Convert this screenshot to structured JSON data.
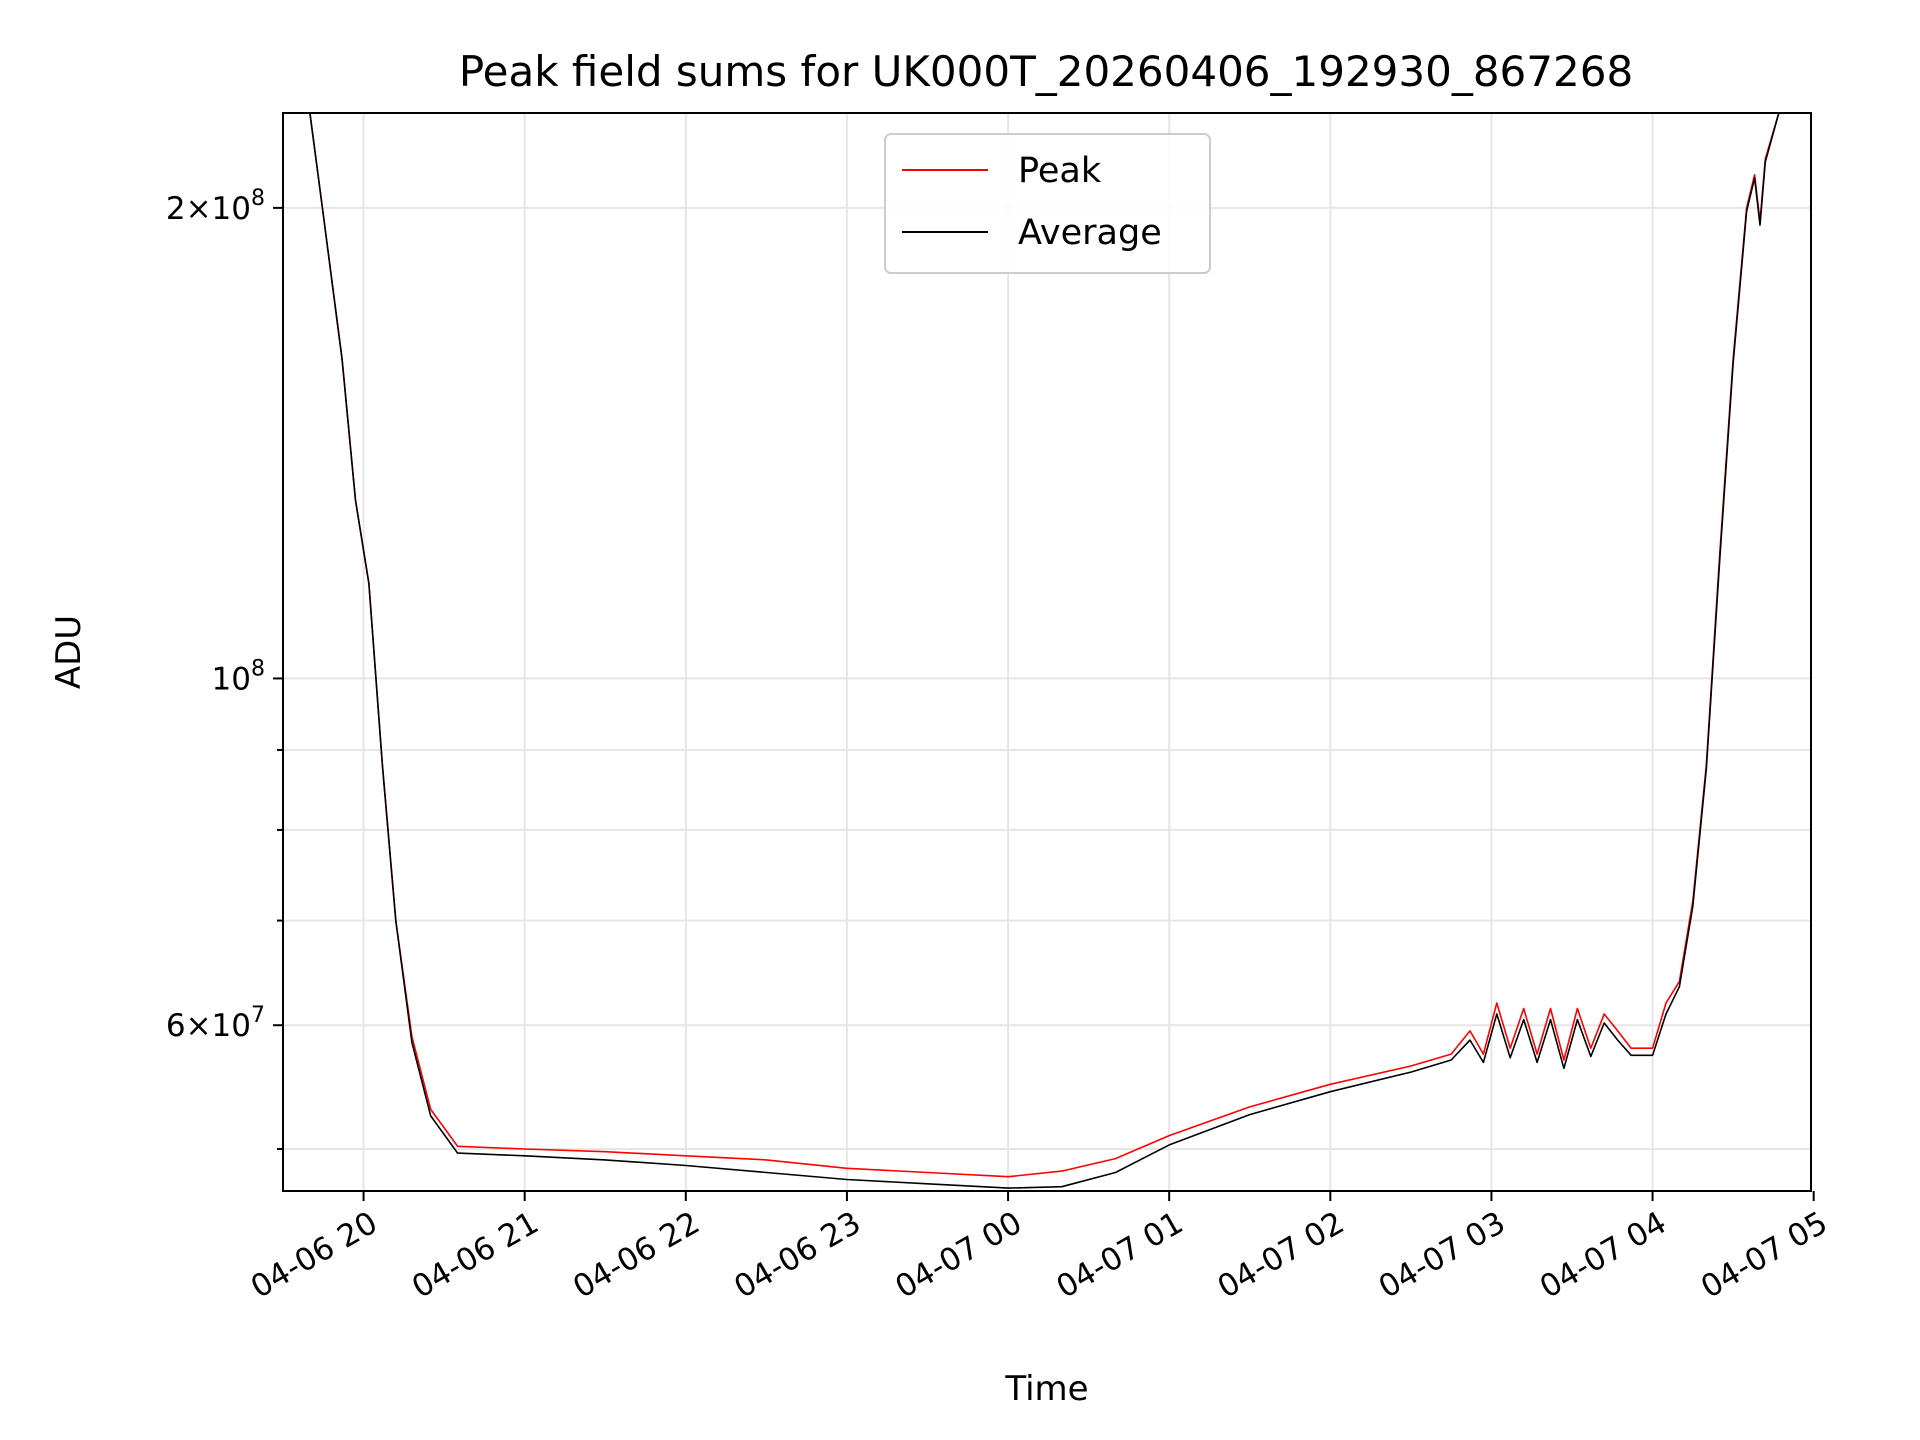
{
  "chart_data": {
    "type": "line",
    "title": "Peak field sums for UK000T_20260406_192930_867268",
    "xlabel": "Time",
    "ylabel": "ADU",
    "y_scale": "log",
    "grid": true,
    "legend_placement": "top-center",
    "xlim": [
      "2026-04-06 19:30",
      "2026-04-07 04:59"
    ],
    "ylim": [
      47000000,
      230000000
    ],
    "x_ticks": [
      {
        "value": "2026-04-06 20:00",
        "label": "04-06 20"
      },
      {
        "value": "2026-04-06 21:00",
        "label": "04-06 21"
      },
      {
        "value": "2026-04-06 22:00",
        "label": "04-06 22"
      },
      {
        "value": "2026-04-06 23:00",
        "label": "04-06 23"
      },
      {
        "value": "2026-04-07 00:00",
        "label": "04-07 00"
      },
      {
        "value": "2026-04-07 01:00",
        "label": "04-07 01"
      },
      {
        "value": "2026-04-07 02:00",
        "label": "04-07 02"
      },
      {
        "value": "2026-04-07 03:00",
        "label": "04-07 03"
      },
      {
        "value": "2026-04-07 04:00",
        "label": "04-07 04"
      },
      {
        "value": "2026-04-07 05:00",
        "label": "04-07 05"
      }
    ],
    "y_ticks_major": [
      {
        "value": 60000000,
        "label_mantissa": "6",
        "label_exponent": "7"
      },
      {
        "value": 100000000,
        "label_mantissa": "",
        "label_exponent": "8"
      },
      {
        "value": 200000000,
        "label_mantissa": "2",
        "label_exponent": "8"
      }
    ],
    "y_ticks_minor": [
      50000000,
      70000000,
      80000000,
      90000000
    ],
    "series": [
      {
        "name": "Peak",
        "color": "#ff0000",
        "x": [
          "2026-04-06 19:30",
          "2026-04-06 19:40",
          "2026-04-06 19:45",
          "2026-04-06 19:52",
          "2026-04-06 19:57",
          "2026-04-06 20:02",
          "2026-04-06 20:07",
          "2026-04-06 20:12",
          "2026-04-06 20:18",
          "2026-04-06 20:25",
          "2026-04-06 20:35",
          "2026-04-06 21:00",
          "2026-04-06 21:30",
          "2026-04-06 22:00",
          "2026-04-06 22:30",
          "2026-04-06 23:00",
          "2026-04-06 23:30",
          "2026-04-07 00:00",
          "2026-04-07 00:20",
          "2026-04-07 00:40",
          "2026-04-07 01:00",
          "2026-04-07 01:30",
          "2026-04-07 02:00",
          "2026-04-07 02:30",
          "2026-04-07 02:45",
          "2026-04-07 02:52",
          "2026-04-07 02:57",
          "2026-04-07 03:02",
          "2026-04-07 03:07",
          "2026-04-07 03:12",
          "2026-04-07 03:17",
          "2026-04-07 03:22",
          "2026-04-07 03:27",
          "2026-04-07 03:32",
          "2026-04-07 03:37",
          "2026-04-07 03:42",
          "2026-04-07 03:47",
          "2026-04-07 03:52",
          "2026-04-07 04:00",
          "2026-04-07 04:05",
          "2026-04-07 04:10",
          "2026-04-07 04:15",
          "2026-04-07 04:20",
          "2026-04-07 04:25",
          "2026-04-07 04:30",
          "2026-04-07 04:35",
          "2026-04-07 04:38",
          "2026-04-07 04:40",
          "2026-04-07 04:42",
          "2026-04-07 04:47",
          "2026-04-07 04:50"
        ],
        "y": [
          230000000,
          230000000,
          198000000,
          160000000,
          130000000,
          115000000,
          88000000,
          70000000,
          59000000,
          53000000,
          50200000,
          50000000,
          49800000,
          49500000,
          49200000,
          48600000,
          48300000,
          48000000,
          48400000,
          49300000,
          51000000,
          53200000,
          55000000,
          56500000,
          57500000,
          59500000,
          57500000,
          62000000,
          58000000,
          61500000,
          57500000,
          61500000,
          57000000,
          61500000,
          58000000,
          61000000,
          59500000,
          58000000,
          58000000,
          62000000,
          64000000,
          72000000,
          88000000,
          120000000,
          160000000,
          200000000,
          210000000,
          196000000,
          215000000,
          230000000,
          230000000
        ]
      },
      {
        "name": "Average",
        "color": "#000000",
        "x": [
          "2026-04-06 19:30",
          "2026-04-06 19:40",
          "2026-04-06 19:45",
          "2026-04-06 19:52",
          "2026-04-06 19:57",
          "2026-04-06 20:02",
          "2026-04-06 20:07",
          "2026-04-06 20:12",
          "2026-04-06 20:18",
          "2026-04-06 20:25",
          "2026-04-06 20:35",
          "2026-04-06 21:00",
          "2026-04-06 21:30",
          "2026-04-06 22:00",
          "2026-04-06 22:30",
          "2026-04-06 23:00",
          "2026-04-06 23:30",
          "2026-04-07 00:00",
          "2026-04-07 00:20",
          "2026-04-07 00:40",
          "2026-04-07 01:00",
          "2026-04-07 01:30",
          "2026-04-07 02:00",
          "2026-04-07 02:30",
          "2026-04-07 02:45",
          "2026-04-07 02:52",
          "2026-04-07 02:57",
          "2026-04-07 03:02",
          "2026-04-07 03:07",
          "2026-04-07 03:12",
          "2026-04-07 03:17",
          "2026-04-07 03:22",
          "2026-04-07 03:27",
          "2026-04-07 03:32",
          "2026-04-07 03:37",
          "2026-04-07 03:42",
          "2026-04-07 03:47",
          "2026-04-07 03:52",
          "2026-04-07 04:00",
          "2026-04-07 04:05",
          "2026-04-07 04:10",
          "2026-04-07 04:15",
          "2026-04-07 04:20",
          "2026-04-07 04:25",
          "2026-04-07 04:30",
          "2026-04-07 04:35",
          "2026-04-07 04:38",
          "2026-04-07 04:40",
          "2026-04-07 04:42",
          "2026-04-07 04:47",
          "2026-04-07 04:50"
        ],
        "y": [
          230000000,
          230000000,
          198000000,
          160000000,
          130000000,
          115000000,
          88000000,
          70000000,
          58500000,
          52500000,
          49700000,
          49500000,
          49200000,
          48800000,
          48300000,
          47800000,
          47500000,
          47200000,
          47300000,
          48300000,
          50300000,
          52600000,
          54400000,
          56000000,
          57000000,
          58700000,
          56800000,
          61000000,
          57200000,
          60500000,
          56800000,
          60500000,
          56300000,
          60500000,
          57300000,
          60200000,
          58700000,
          57400000,
          57400000,
          61000000,
          63500000,
          71500000,
          87500000,
          119000000,
          159000000,
          199000000,
          209000000,
          195000000,
          214000000,
          230000000,
          230000000
        ]
      }
    ]
  }
}
